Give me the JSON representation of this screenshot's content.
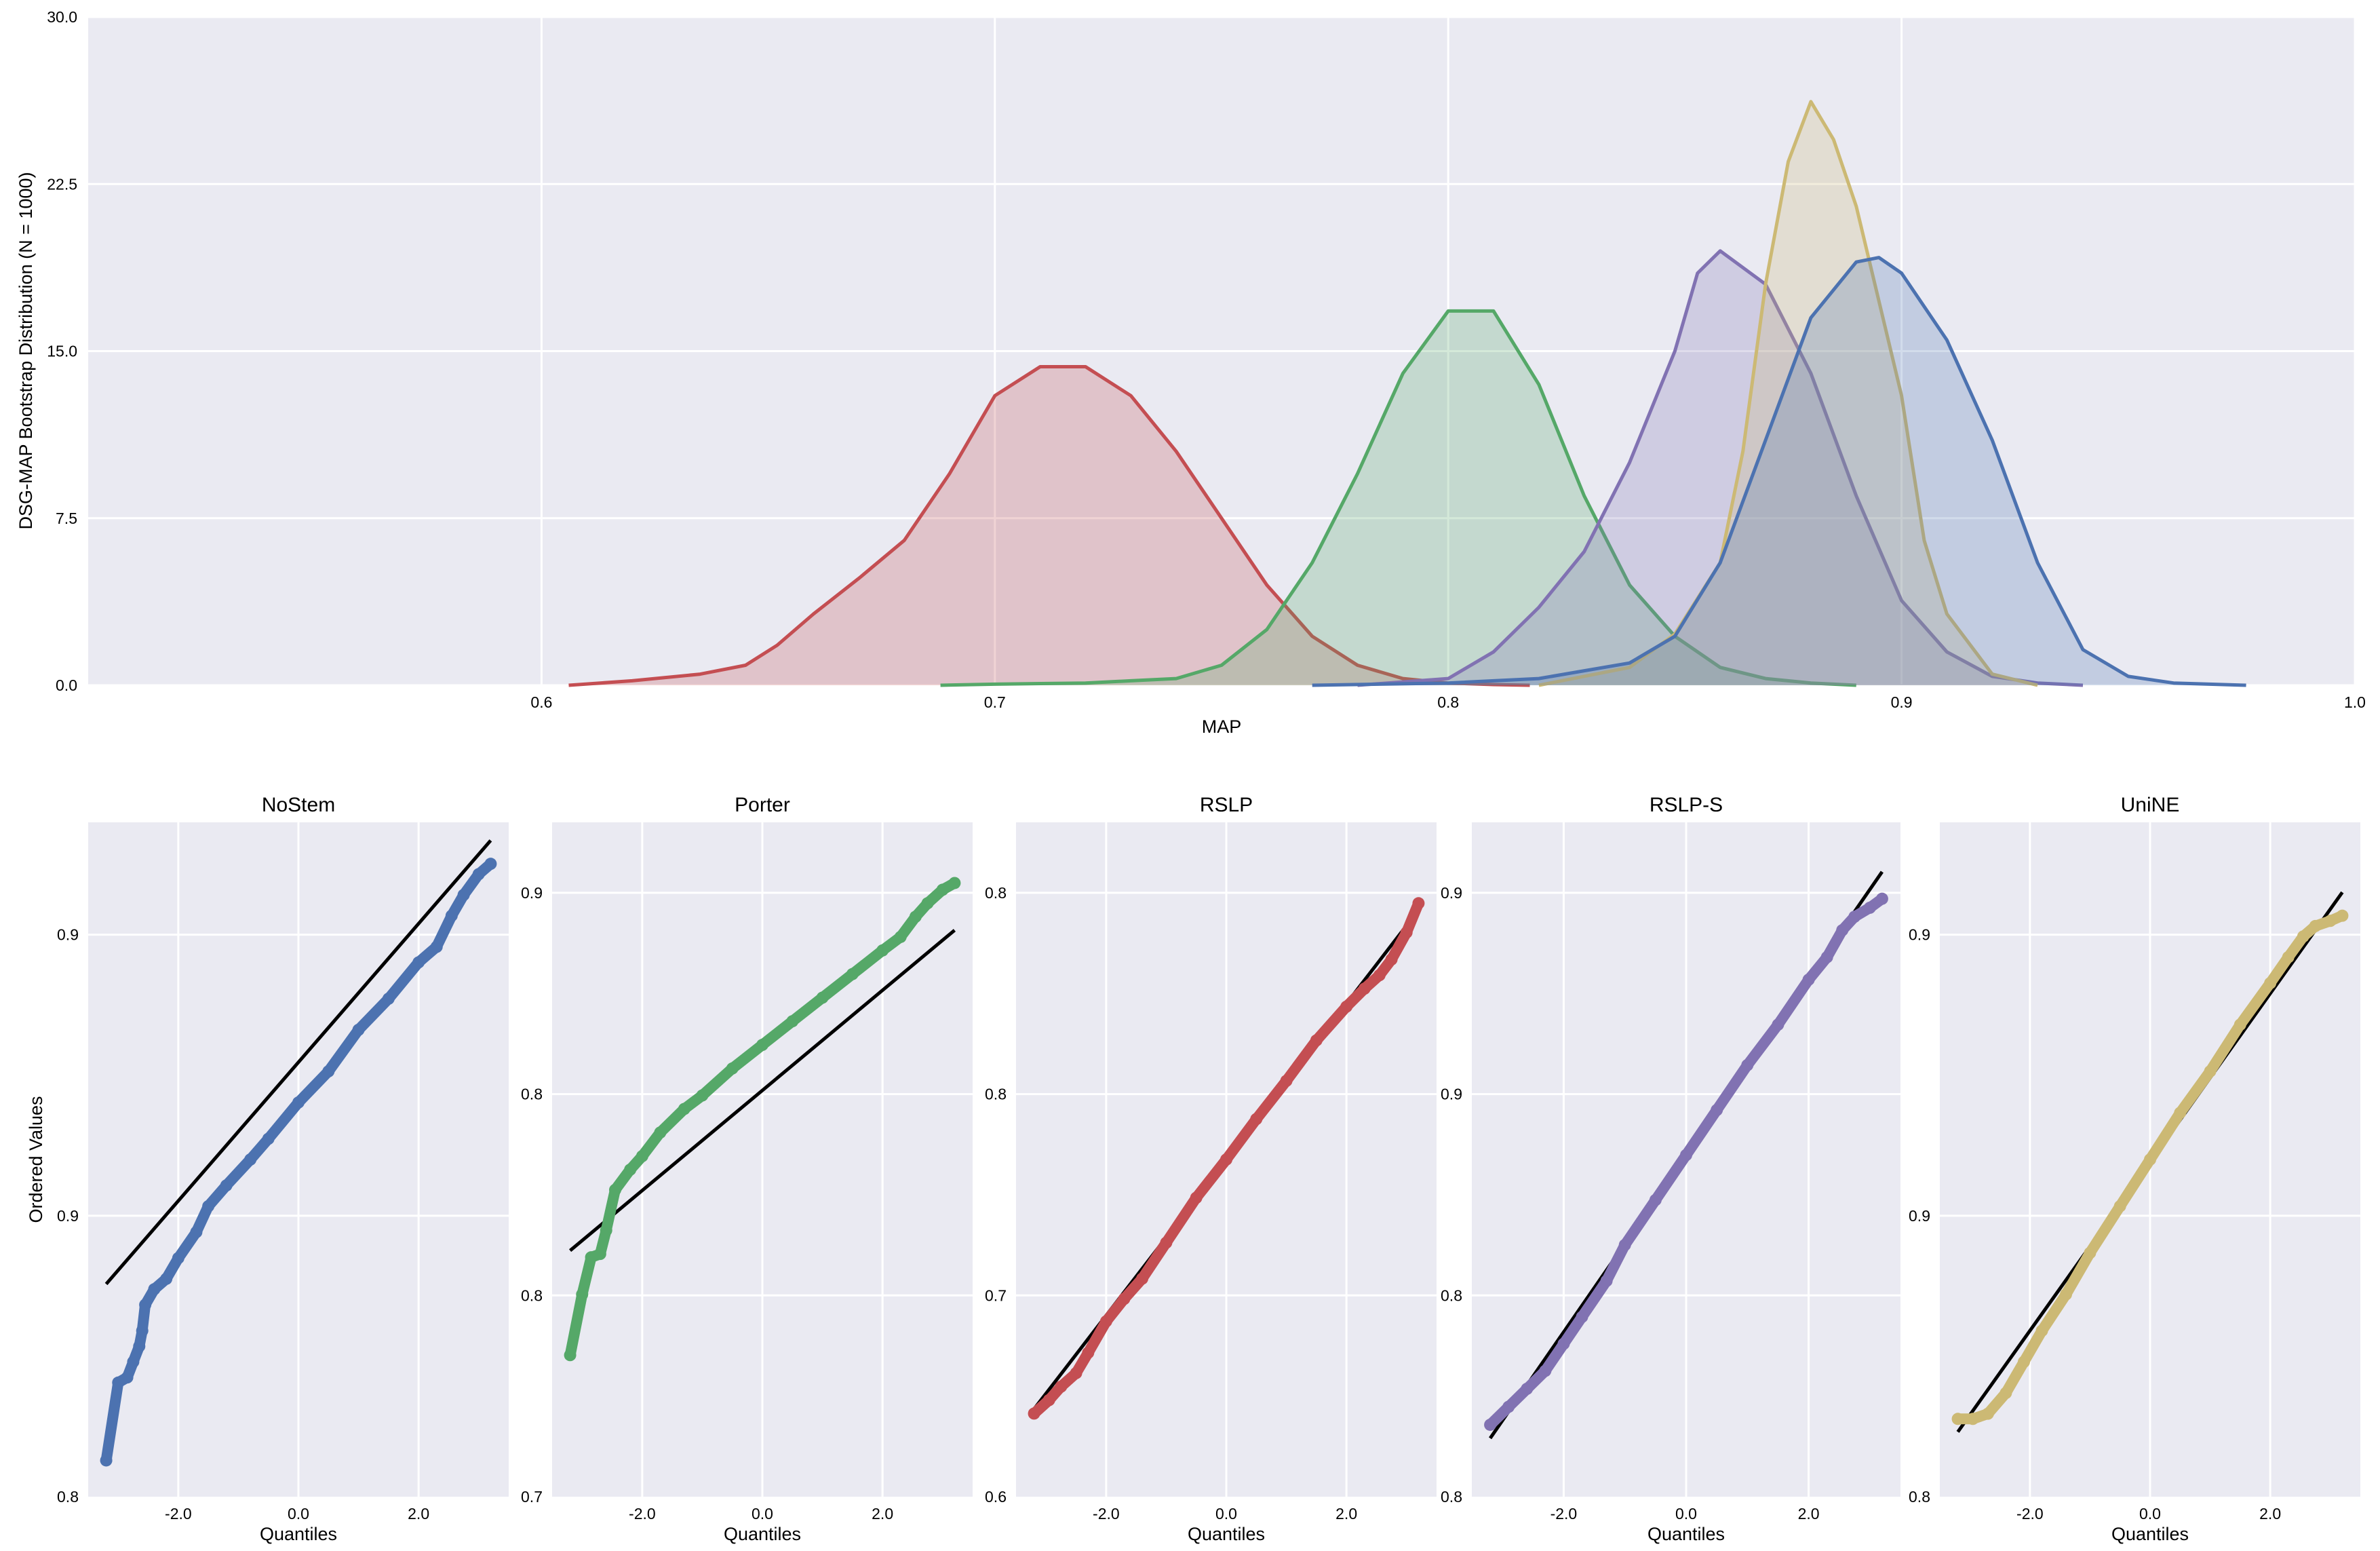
{
  "colors": {
    "axes_bg": "#EAEAF2",
    "grid": "#FFFFFF",
    "series": {
      "blue": "#4C72B0",
      "green": "#55A868",
      "red": "#C44E52",
      "purple": "#8172B2",
      "yellow": "#CCB974"
    },
    "reference_line": "#000000"
  },
  "chart_data": [
    {
      "type": "area",
      "kind": "kde-density",
      "xlabel": "MAP",
      "ylabel": "DSG-MAP Bootstrap Distribution (N = 1000)",
      "xlim": [
        0.5,
        1.0
      ],
      "ylim": [
        0,
        30
      ],
      "x_ticks": [
        "0.6",
        "0.7",
        "0.8",
        "0.9",
        "1.0"
      ],
      "y_ticks": [
        "0.0",
        "7.5",
        "15.0",
        "22.5",
        "30.0"
      ],
      "grid": true,
      "legend": "none",
      "series": [
        {
          "color": "red",
          "x": [
            0.606,
            0.62,
            0.635,
            0.645,
            0.652,
            0.66,
            0.67,
            0.68,
            0.69,
            0.7,
            0.71,
            0.72,
            0.73,
            0.74,
            0.75,
            0.76,
            0.77,
            0.78,
            0.79,
            0.8,
            0.81,
            0.818
          ],
          "y": [
            0.0,
            0.2,
            0.5,
            0.9,
            1.8,
            3.2,
            4.8,
            6.5,
            9.5,
            13.0,
            14.3,
            14.3,
            13.0,
            10.5,
            7.5,
            4.5,
            2.2,
            0.9,
            0.3,
            0.1,
            0.03,
            0.0
          ]
        },
        {
          "color": "green",
          "x": [
            0.688,
            0.7,
            0.72,
            0.73,
            0.74,
            0.75,
            0.76,
            0.77,
            0.78,
            0.79,
            0.8,
            0.81,
            0.82,
            0.83,
            0.84,
            0.85,
            0.86,
            0.87,
            0.88,
            0.89
          ],
          "y": [
            0.0,
            0.05,
            0.1,
            0.2,
            0.3,
            0.9,
            2.5,
            5.5,
            9.5,
            14.0,
            16.8,
            16.8,
            13.5,
            8.5,
            4.5,
            2.2,
            0.8,
            0.3,
            0.1,
            0.0
          ]
        },
        {
          "color": "purple",
          "x": [
            0.78,
            0.8,
            0.81,
            0.82,
            0.83,
            0.84,
            0.85,
            0.855,
            0.86,
            0.87,
            0.88,
            0.89,
            0.9,
            0.91,
            0.92,
            0.93,
            0.94
          ],
          "y": [
            0.0,
            0.3,
            1.5,
            3.5,
            6.0,
            10.0,
            15.0,
            18.5,
            19.5,
            18.0,
            14.0,
            8.5,
            3.8,
            1.5,
            0.4,
            0.1,
            0.0
          ]
        },
        {
          "color": "yellow",
          "x": [
            0.82,
            0.84,
            0.85,
            0.86,
            0.865,
            0.87,
            0.875,
            0.88,
            0.885,
            0.89,
            0.9,
            0.905,
            0.91,
            0.92,
            0.93
          ],
          "y": [
            0.0,
            0.8,
            2.3,
            5.5,
            10.5,
            18.0,
            23.5,
            26.2,
            24.5,
            21.5,
            13.0,
            6.5,
            3.2,
            0.5,
            0.0
          ]
        },
        {
          "color": "blue",
          "x": [
            0.77,
            0.8,
            0.82,
            0.84,
            0.85,
            0.86,
            0.87,
            0.88,
            0.89,
            0.895,
            0.9,
            0.91,
            0.92,
            0.93,
            0.94,
            0.95,
            0.96,
            0.976
          ],
          "y": [
            0.0,
            0.1,
            0.3,
            1.0,
            2.2,
            5.5,
            11.0,
            16.5,
            19.0,
            19.2,
            18.5,
            15.5,
            11.0,
            5.5,
            1.6,
            0.4,
            0.1,
            0.0
          ]
        }
      ]
    },
    {
      "type": "scatter",
      "kind": "qq-plot",
      "title": "NoStem",
      "xlabel": "Quantiles",
      "ylabel": "Ordered Values",
      "color": "blue",
      "xlim": [
        -3.5,
        3.5
      ],
      "ylim": [
        0.8,
        0.93
      ],
      "x_ticks": [
        "-2.0",
        "0.0",
        "2.0"
      ],
      "y_ticks": [
        "0.8",
        "0.9",
        "0.9"
      ],
      "line": [
        [
          -3.2,
          0.841
        ],
        [
          3.2,
          0.9265
        ]
      ],
      "points": [
        [
          -3.2,
          0.807
        ],
        [
          -3.0,
          0.822
        ],
        [
          -2.85,
          0.823
        ],
        [
          -2.75,
          0.826
        ],
        [
          -2.65,
          0.829
        ],
        [
          -2.6,
          0.832
        ],
        [
          -2.55,
          0.837
        ],
        [
          -2.4,
          0.84
        ],
        [
          -2.2,
          0.842
        ],
        [
          -2.0,
          0.846
        ],
        [
          -1.7,
          0.851
        ],
        [
          -1.5,
          0.856
        ],
        [
          -1.2,
          0.86
        ],
        [
          -0.8,
          0.865
        ],
        [
          -0.5,
          0.869
        ],
        [
          0.0,
          0.876
        ],
        [
          0.5,
          0.882
        ],
        [
          1.0,
          0.89
        ],
        [
          1.5,
          0.896
        ],
        [
          2.0,
          0.903
        ],
        [
          2.3,
          0.906
        ],
        [
          2.55,
          0.912
        ],
        [
          2.75,
          0.916
        ],
        [
          3.0,
          0.92
        ],
        [
          3.2,
          0.922
        ]
      ]
    },
    {
      "type": "scatter",
      "kind": "qq-plot",
      "title": "Porter",
      "xlabel": "Quantiles",
      "ylabel": "",
      "color": "green",
      "xlim": [
        -3.5,
        3.5
      ],
      "ylim": [
        0.7,
        0.9
      ],
      "x_ticks": [
        "-2.0",
        "0.0",
        "2.0"
      ],
      "y_ticks": [
        "0.7",
        "0.8",
        "0.8",
        "0.9"
      ],
      "line": [
        [
          -3.2,
          0.773
        ],
        [
          3.2,
          0.868
        ]
      ],
      "points": [
        [
          -3.2,
          0.742
        ],
        [
          -3.0,
          0.76
        ],
        [
          -2.85,
          0.771
        ],
        [
          -2.7,
          0.772
        ],
        [
          -2.6,
          0.779
        ],
        [
          -2.45,
          0.791
        ],
        [
          -2.2,
          0.797
        ],
        [
          -2.0,
          0.801
        ],
        [
          -1.7,
          0.808
        ],
        [
          -1.3,
          0.815
        ],
        [
          -1.0,
          0.819
        ],
        [
          -0.5,
          0.827
        ],
        [
          0.0,
          0.834
        ],
        [
          0.5,
          0.841
        ],
        [
          1.0,
          0.848
        ],
        [
          1.5,
          0.855
        ],
        [
          2.0,
          0.862
        ],
        [
          2.3,
          0.866
        ],
        [
          2.55,
          0.872
        ],
        [
          2.75,
          0.876
        ],
        [
          3.0,
          0.88
        ],
        [
          3.2,
          0.882
        ]
      ]
    },
    {
      "type": "scatter",
      "kind": "qq-plot",
      "title": "RSLP",
      "xlabel": "Quantiles",
      "ylabel": "",
      "color": "red",
      "xlim": [
        -3.5,
        3.5
      ],
      "ylim": [
        0.6,
        0.9
      ],
      "x_ticks": [
        "-2.0",
        "0.0",
        "2.0"
      ],
      "y_ticks": [
        "0.6",
        "0.7",
        "0.8",
        "0.8"
      ],
      "line": [
        [
          -3.2,
          0.639
        ],
        [
          3.2,
          0.861
        ]
      ],
      "points": [
        [
          -3.2,
          0.637
        ],
        [
          -2.95,
          0.643
        ],
        [
          -2.75,
          0.649
        ],
        [
          -2.5,
          0.655
        ],
        [
          -2.3,
          0.664
        ],
        [
          -2.0,
          0.678
        ],
        [
          -1.7,
          0.688
        ],
        [
          -1.4,
          0.697
        ],
        [
          -1.0,
          0.713
        ],
        [
          -0.5,
          0.733
        ],
        [
          0.0,
          0.75
        ],
        [
          0.5,
          0.768
        ],
        [
          1.0,
          0.785
        ],
        [
          1.5,
          0.803
        ],
        [
          2.0,
          0.818
        ],
        [
          2.3,
          0.826
        ],
        [
          2.55,
          0.832
        ],
        [
          2.75,
          0.839
        ],
        [
          3.0,
          0.851
        ],
        [
          3.2,
          0.864
        ]
      ]
    },
    {
      "type": "scatter",
      "kind": "qq-plot",
      "title": "RSLP-S",
      "xlabel": "Quantiles",
      "ylabel": "",
      "color": "purple",
      "xlim": [
        -3.5,
        3.5
      ],
      "ylim": [
        0.8,
        0.95
      ],
      "x_ticks": [
        "-2.0",
        "0.0",
        "2.0"
      ],
      "y_ticks": [
        "0.8",
        "0.8",
        "0.9",
        "0.9"
      ],
      "line": [
        [
          -3.2,
          0.813
        ],
        [
          3.2,
          0.939
        ]
      ],
      "points": [
        [
          -3.2,
          0.816
        ],
        [
          -2.9,
          0.82
        ],
        [
          -2.6,
          0.824
        ],
        [
          -2.3,
          0.828
        ],
        [
          -2.0,
          0.834
        ],
        [
          -1.7,
          0.84
        ],
        [
          -1.3,
          0.848
        ],
        [
          -1.0,
          0.856
        ],
        [
          -0.5,
          0.866
        ],
        [
          0.0,
          0.876
        ],
        [
          0.5,
          0.886
        ],
        [
          1.0,
          0.896
        ],
        [
          1.5,
          0.905
        ],
        [
          2.0,
          0.915
        ],
        [
          2.3,
          0.92
        ],
        [
          2.55,
          0.926
        ],
        [
          2.75,
          0.929
        ],
        [
          3.0,
          0.931
        ],
        [
          3.2,
          0.933
        ]
      ]
    },
    {
      "type": "scatter",
      "kind": "qq-plot",
      "title": "UniNE",
      "xlabel": "Quantiles",
      "ylabel": "",
      "color": "yellow",
      "xlim": [
        -3.5,
        3.5
      ],
      "ylim": [
        0.8,
        0.93
      ],
      "x_ticks": [
        "-2.0",
        "0.0",
        "2.0"
      ],
      "y_ticks": [
        "0.8",
        "0.9",
        "0.9"
      ],
      "line": [
        [
          -3.2,
          0.8125
        ],
        [
          3.2,
          0.9165
        ]
      ],
      "points": [
        [
          -3.2,
          0.815
        ],
        [
          -2.95,
          0.815
        ],
        [
          -2.7,
          0.816
        ],
        [
          -2.4,
          0.82
        ],
        [
          -2.1,
          0.826
        ],
        [
          -1.8,
          0.832
        ],
        [
          -1.4,
          0.839
        ],
        [
          -1.0,
          0.847
        ],
        [
          -0.5,
          0.856
        ],
        [
          0.0,
          0.865
        ],
        [
          0.5,
          0.874
        ],
        [
          1.0,
          0.882
        ],
        [
          1.5,
          0.891
        ],
        [
          2.0,
          0.899
        ],
        [
          2.3,
          0.904
        ],
        [
          2.55,
          0.908
        ],
        [
          2.75,
          0.91
        ],
        [
          3.0,
          0.911
        ],
        [
          3.2,
          0.912
        ]
      ]
    }
  ]
}
